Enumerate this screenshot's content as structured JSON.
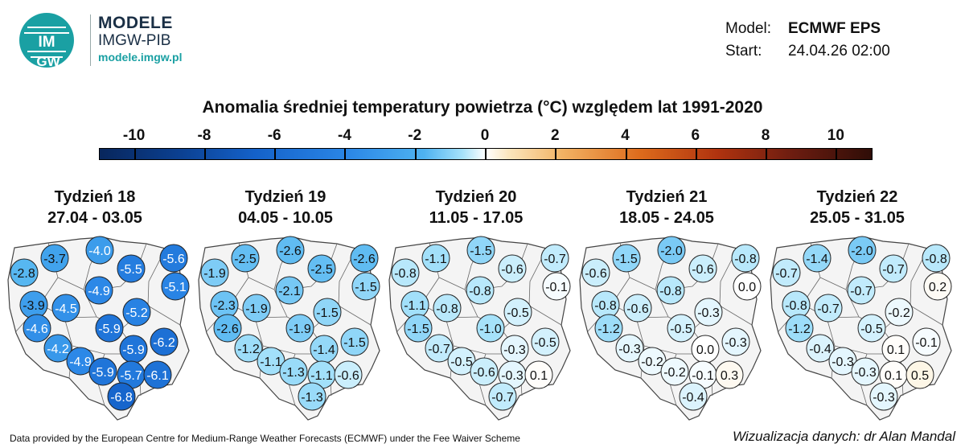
{
  "header": {
    "brand": "MODELE",
    "org": "IMGW-PIB",
    "site": "modele.imgw.pl",
    "logo_text_top": "IM",
    "logo_text_bottom": "GW"
  },
  "model_info": {
    "model_label": "Model:",
    "model_value": "ECMWF EPS",
    "start_label": "Start:",
    "start_value": "24.04.26 02:00"
  },
  "title": "Anomalia średniej temperatury powietrza (°C) względem lat 1991-2020",
  "colorbar": {
    "ticks": [
      "-10",
      "-8",
      "-6",
      "-4",
      "-2",
      "0",
      "2",
      "4",
      "6",
      "8",
      "10"
    ],
    "range": [
      -11,
      11
    ]
  },
  "weeks": [
    {
      "label": "Tydzień 18",
      "dates": "27.04 - 03.05",
      "values": [
        "-4.0",
        "-3.7",
        "-2.8",
        "-5.5",
        "-5.6",
        "-4.9",
        "-5.1",
        "-3.9",
        "-4.5",
        "-5.2",
        "-4.6",
        "-5.9",
        "-4.2",
        "-6.2",
        "-5.9",
        "-4.9",
        "-5.9",
        "-5.7",
        "-6.1",
        "-6.8"
      ]
    },
    {
      "label": "Tydzień 19",
      "dates": "04.05 - 10.05",
      "values": [
        "-2.6",
        "-2.5",
        "-1.9",
        "-2.5",
        "-2.6",
        "-2.1",
        "-1.5",
        "-2.3",
        "-1.9",
        "-1.5",
        "-2.6",
        "-1.9",
        "-1.2",
        "-1.5",
        "-1.4",
        "-1.1",
        "-1.3",
        "-1.1",
        "-0.6",
        "-1.3"
      ]
    },
    {
      "label": "Tydzień 20",
      "dates": "11.05 - 17.05",
      "values": [
        "-1.5",
        "-1.1",
        "-0.8",
        "-0.6",
        "-0.7",
        "-0.8",
        "-0.1",
        "-1.1",
        "-0.8",
        "-0.5",
        "-1.5",
        "-1.0",
        "-0.7",
        "-0.5",
        "-0.3",
        "-0.5",
        "-0.6",
        "-0.3",
        "0.1",
        "-0.7"
      ]
    },
    {
      "label": "Tydzień 21",
      "dates": "18.05 - 24.05",
      "values": [
        "-2.0",
        "-1.5",
        "-0.6",
        "-0.6",
        "-0.8",
        "-0.8",
        "0.0",
        "-0.8",
        "-0.6",
        "-0.3",
        "-1.2",
        "-0.5",
        "-0.3",
        "-0.3",
        "0.0",
        "-0.2",
        "-0.2",
        "-0.1",
        "0.3",
        "-0.4"
      ]
    },
    {
      "label": "Tydzień 22",
      "dates": "25.05 - 31.05",
      "values": [
        "-2.0",
        "-1.4",
        "-0.7",
        "-0.7",
        "-0.8",
        "-0.7",
        "0.2",
        "-0.8",
        "-0.7",
        "-0.2",
        "-1.2",
        "-0.5",
        "-0.4",
        "-0.1",
        "0.1",
        "-0.3",
        "-0.3",
        "0.1",
        "0.5",
        "-0.3"
      ]
    }
  ],
  "footer": {
    "left": "Data provided by the European Centre for Medium-Range Weather Forecasts (ECMWF) under the Fee Waiver Scheme",
    "right": "Wizualizacja danych: dr Alan Mandal"
  }
}
